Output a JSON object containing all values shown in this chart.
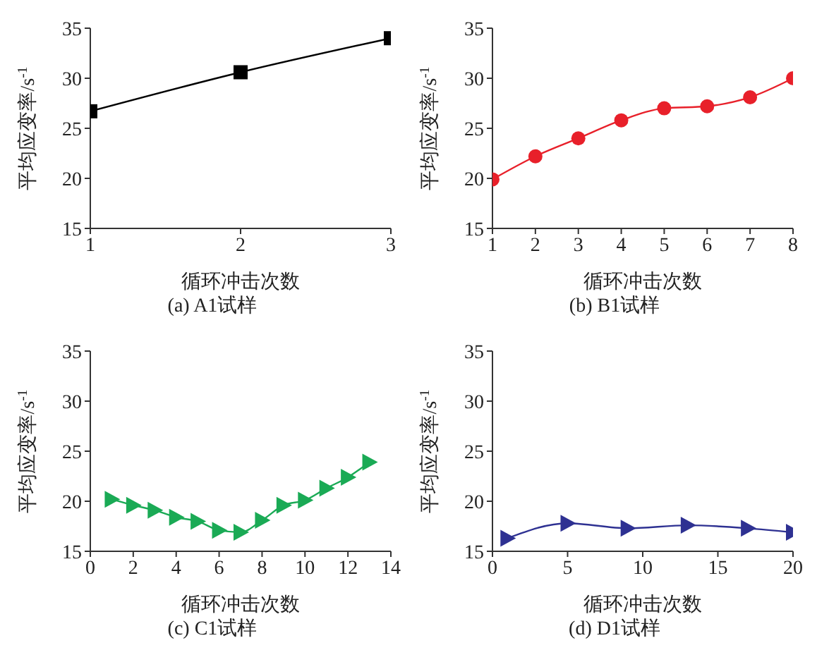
{
  "chart_data": [
    {
      "type": "line",
      "title": "(a) A1试样",
      "xlabel": "循环冲击次数",
      "ylabel": "平均应变率/s$^{-1}$",
      "xlim": [
        1,
        3
      ],
      "xticks": [
        1,
        2,
        3
      ],
      "ylim": [
        15,
        35
      ],
      "yticks": [
        15,
        20,
        25,
        30,
        35
      ],
      "marker": "square",
      "series": [
        {
          "color": "#000000",
          "x": [
            1,
            2,
            3
          ],
          "values": [
            26.7,
            30.6,
            34.0
          ]
        }
      ]
    },
    {
      "type": "line",
      "title": "(b) B1试样",
      "xlabel": "循环冲击次数",
      "ylabel": "平均应变率/s$^{-1}$",
      "xlim": [
        1,
        8
      ],
      "xticks": [
        1,
        2,
        3,
        4,
        5,
        6,
        7,
        8
      ],
      "ylim": [
        15,
        35
      ],
      "yticks": [
        15,
        20,
        25,
        30,
        35
      ],
      "marker": "circle",
      "series": [
        {
          "color": "#e8202a",
          "x": [
            1,
            2,
            3,
            4,
            5,
            6,
            7,
            8
          ],
          "values": [
            19.9,
            22.2,
            24.0,
            25.8,
            27.0,
            27.2,
            28.1,
            30.0
          ]
        }
      ]
    },
    {
      "type": "line",
      "title": "(c) C1试样",
      "xlabel": "循环冲击次数",
      "ylabel": "平均应变率/s$^{-1}$",
      "xlim": [
        0,
        14
      ],
      "xticks": [
        0,
        2,
        4,
        6,
        8,
        10,
        12,
        14
      ],
      "ylim": [
        15,
        35
      ],
      "yticks": [
        15,
        20,
        25,
        30,
        35
      ],
      "marker": "triangle",
      "series": [
        {
          "color": "#1aaa55",
          "x": [
            1,
            2,
            3,
            4,
            5,
            6,
            7,
            8,
            9,
            10,
            11,
            12,
            13
          ],
          "values": [
            20.2,
            19.6,
            19.1,
            18.4,
            18.0,
            17.1,
            16.9,
            18.1,
            19.6,
            20.1,
            21.3,
            22.4,
            23.9
          ]
        }
      ]
    },
    {
      "type": "line",
      "title": "(d) D1试样",
      "xlabel": "循环冲击次数",
      "ylabel": "平均应变率/s$^{-1}$",
      "xlim": [
        0,
        20
      ],
      "xticks": [
        0,
        5,
        10,
        15,
        20
      ],
      "ylim": [
        15,
        35
      ],
      "yticks": [
        15,
        20,
        25,
        30,
        35
      ],
      "marker": "triangle",
      "series": [
        {
          "color": "#2e3192",
          "x": [
            1,
            5,
            9,
            13,
            17,
            20
          ],
          "values": [
            16.3,
            17.8,
            17.3,
            17.6,
            17.3,
            16.9
          ]
        }
      ]
    }
  ]
}
